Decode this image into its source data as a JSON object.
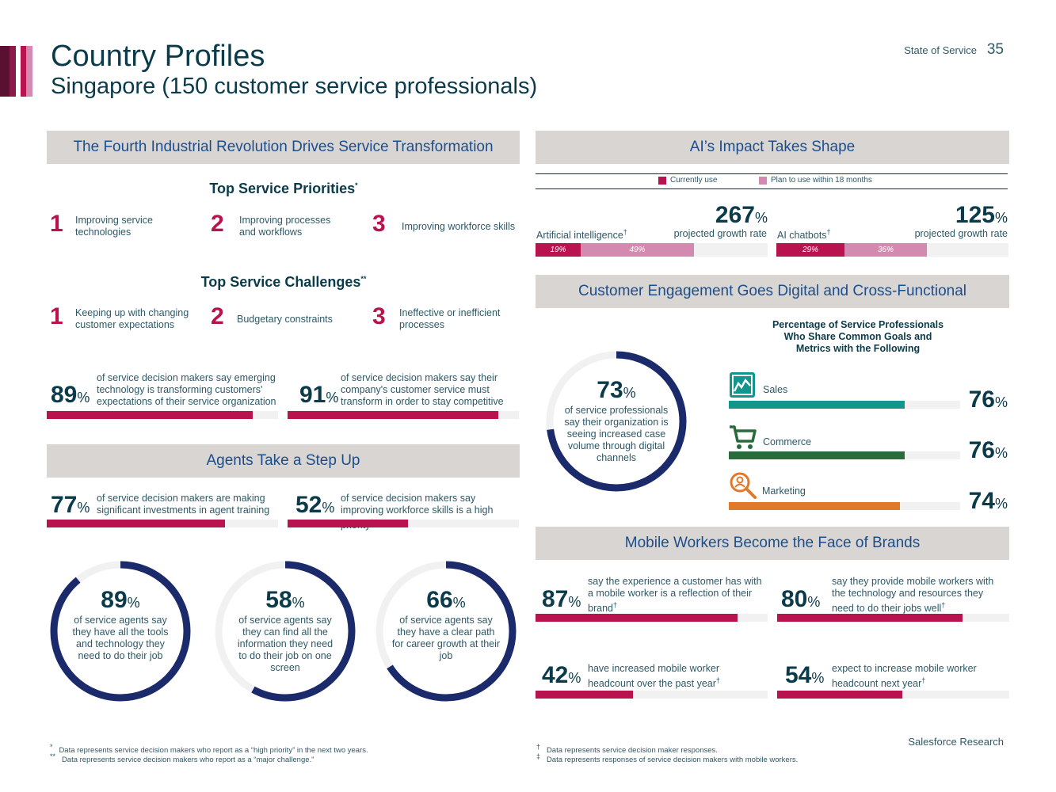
{
  "header": {
    "title": "Country Profiles",
    "subtitle": "Singapore (150 customer service professionals)",
    "page_label": "State of Service",
    "page_number": "35",
    "stripe_colors": [
      "#5a1030",
      "#8a1a4a",
      "#b8124f",
      "#d48ab0"
    ]
  },
  "colors": {
    "navy": "#0b3b4a",
    "magenta": "#b8124f",
    "pink": "#d48ab0",
    "ring": "#1b2a6b",
    "teal": "#12958c",
    "green": "#2a6b3c",
    "orange": "#e0792a"
  },
  "fourth_revolution": {
    "heading": "The Fourth Industrial Revolution Drives Service Transformation",
    "priorities": {
      "title": "Top Service Priorities",
      "mark": "*",
      "items": [
        {
          "rank": "1",
          "text": "Improving service technologies"
        },
        {
          "rank": "2",
          "text": "Improving processes and workflows"
        },
        {
          "rank": "3",
          "text": "Improving workforce skills"
        }
      ]
    },
    "challenges": {
      "title": "Top Service Challenges",
      "mark": "**",
      "items": [
        {
          "rank": "1",
          "text": "Keeping up with changing customer expectations"
        },
        {
          "rank": "2",
          "text": "Budgetary constraints"
        },
        {
          "rank": "3",
          "text": "Ineffective or inefficient processes"
        }
      ]
    },
    "stats": [
      {
        "num": "89",
        "pct": "%",
        "value": 89,
        "text": "of service decision makers say emerging technology is transforming customers' expectations of their service organization"
      },
      {
        "num": "91",
        "pct": "%",
        "value": 91,
        "text": "of service decision makers say their company's customer service must transform in order to stay competitive"
      }
    ]
  },
  "agents": {
    "heading": "Agents Take a Step Up",
    "stats": [
      {
        "num": "77",
        "pct": "%",
        "value": 77,
        "text": "of service decision makers are making significant investments in agent training"
      },
      {
        "num": "52",
        "pct": "%",
        "value": 52,
        "text": "of service decision makers say improving workforce skills is a high priority",
        "mark": "*"
      }
    ],
    "rings": [
      {
        "num": "89",
        "pct": "%",
        "value": 89,
        "text": "of service agents say they have all the tools and technology they need to do their job"
      },
      {
        "num": "58",
        "pct": "%",
        "value": 58,
        "text": "of service agents say they can find all the information they need to do their job on one screen"
      },
      {
        "num": "66",
        "pct": "%",
        "value": 66,
        "text": "of service agents say they have a clear path for career growth at their job"
      }
    ]
  },
  "ai": {
    "heading": "AI’s Impact Takes Shape",
    "legend": {
      "current": "Currently use",
      "plan": "Plan to use within 18 months"
    },
    "items": [
      {
        "label": "Artificial intelligence",
        "mark": "†",
        "growth": "267",
        "pct": "%",
        "growth_text": "projected growth rate",
        "current": 19,
        "plan": 49,
        "current_label": "19%",
        "plan_label": "49%"
      },
      {
        "label": "AI chatbots",
        "mark": "†",
        "growth": "125",
        "pct": "%",
        "growth_text": "projected growth rate",
        "current": 29,
        "plan": 36,
        "current_label": "29%",
        "plan_label": "36%"
      }
    ]
  },
  "engagement": {
    "heading": "Customer Engagement Goes Digital and Cross-Functional",
    "ring": {
      "num": "73",
      "pct": "%",
      "value": 73,
      "text": "of service professionals say their organization is seeing increased case volume through digital channels"
    },
    "chart_caption": "Percentage of Service Professionals Who Share Common Goals and Metrics with the Following"
  },
  "chart_data": {
    "type": "bar",
    "title": "Percentage of Service Professionals Who Share Common Goals and Metrics with the Following",
    "categories": [
      "Sales",
      "Commerce",
      "Marketing"
    ],
    "values": [
      76,
      76,
      74
    ],
    "value_labels": [
      "76",
      "76",
      "74"
    ],
    "unit": "%",
    "icons": [
      "chart-icon",
      "cart-icon",
      "magnifier-icon"
    ],
    "ylim": [
      0,
      100
    ]
  },
  "mobile": {
    "heading": "Mobile Workers Become the Face of Brands",
    "stats": [
      {
        "num": "87",
        "pct": "%",
        "value": 87,
        "text": "say the experience a customer has with a mobile worker is a reflection of their brand",
        "mark": "†"
      },
      {
        "num": "80",
        "pct": "%",
        "value": 80,
        "text": "say they provide mobile workers with the technology and resources they need to do their jobs well",
        "mark": "†"
      },
      {
        "num": "42",
        "pct": "%",
        "value": 42,
        "text": "have increased mobile worker headcount over the past year",
        "mark": "†"
      },
      {
        "num": "54",
        "pct": "%",
        "value": 54,
        "text": "expect to increase mobile worker headcount next year",
        "mark": "†"
      }
    ]
  },
  "footnotes": {
    "left": [
      {
        "mark": "*",
        "text": "Data represents service decision makers who report as a “high priority” in the next two years."
      },
      {
        "mark": "**",
        "text": "Data represents service decision makers who report as a “major challenge.”"
      }
    ],
    "right": [
      {
        "mark": "†",
        "text": "Data represents service decision maker responses."
      },
      {
        "mark": "‡",
        "text": "Data represents responses of service decision makers with mobile workers."
      }
    ]
  },
  "brand": "Salesforce Research"
}
